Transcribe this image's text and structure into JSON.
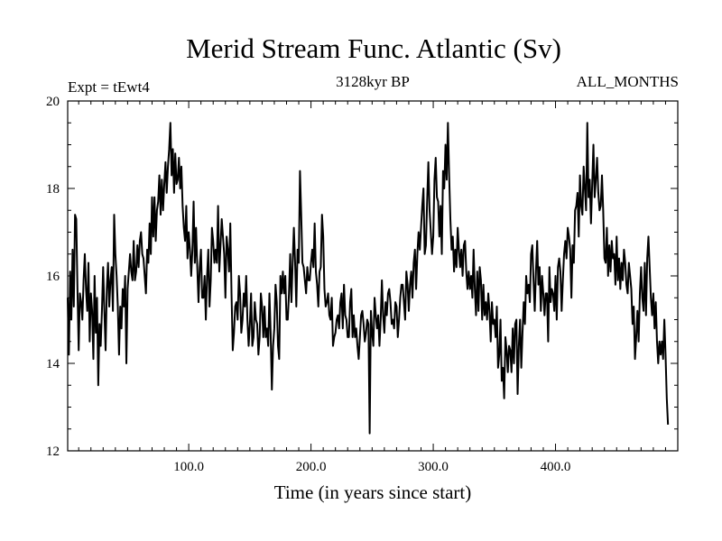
{
  "chart_data": {
    "type": "line",
    "title": "Merid Stream Func. Atlantic (Sv)",
    "subtitle_left": "Expt = tEwt4",
    "subtitle_center": "3128kyr BP",
    "subtitle_right": "ALL_MONTHS",
    "xlabel": "Time (in years since start)",
    "ylabel": "",
    "xlim": [
      1,
      500
    ],
    "ylim": [
      12,
      20
    ],
    "x_ticks": [
      {
        "value": 100,
        "label": "100.0"
      },
      {
        "value": 200,
        "label": "200.0"
      },
      {
        "value": 300,
        "label": "300.0"
      },
      {
        "value": 400,
        "label": "400.0"
      }
    ],
    "y_ticks": [
      {
        "value": 12,
        "label": "12"
      },
      {
        "value": 14,
        "label": "14"
      },
      {
        "value": 16,
        "label": "16"
      },
      {
        "value": 18,
        "label": "18"
      },
      {
        "value": 20,
        "label": "20"
      }
    ],
    "grid": false,
    "line_color": "#000000",
    "series": [
      {
        "name": "Merid Stream Func. Atlantic",
        "x_start": 1,
        "x_step": 1,
        "values": [
          15.5,
          14.2,
          16.1,
          15.0,
          16.6,
          15.3,
          17.4,
          17.3,
          15.7,
          14.3,
          15.6,
          15.4,
          15.0,
          15.9,
          16.5,
          15.7,
          15.2,
          16.3,
          14.5,
          15.6,
          15.2,
          14.1,
          16.0,
          14.7,
          15.5,
          13.5,
          14.9,
          14.4,
          15.2,
          16.2,
          15.2,
          14.3,
          15.7,
          16.3,
          15.3,
          15.9,
          16.2,
          15.2,
          17.4,
          16.5,
          16.0,
          15.3,
          14.2,
          15.3,
          14.8,
          15.7,
          15.3,
          16.0,
          14.0,
          15.7,
          16.1,
          16.5,
          16.1,
          15.9,
          16.8,
          15.9,
          16.1,
          16.7,
          16.2,
          16.8,
          17.0,
          16.5,
          16.4,
          16.0,
          15.6,
          16.6,
          16.3,
          17.2,
          16.5,
          17.8,
          16.9,
          17.8,
          16.8,
          17.5,
          17.7,
          18.3,
          17.4,
          18.2,
          17.5,
          18.1,
          18.6,
          17.9,
          18.5,
          18.9,
          19.5,
          18.3,
          18.9,
          17.9,
          18.8,
          18.1,
          18.2,
          18.7,
          18.0,
          18.5,
          17.6,
          17.1,
          16.8,
          17.6,
          16.4,
          17.0,
          16.6,
          16.0,
          16.6,
          17.7,
          16.3,
          17.1,
          16.2,
          15.4,
          16.2,
          16.6,
          15.5,
          15.5,
          16.0,
          15.0,
          16.0,
          16.6,
          15.3,
          15.9,
          17.1,
          16.8,
          16.3,
          16.6,
          16.3,
          17.6,
          16.1,
          16.7,
          17.3,
          16.9,
          16.5,
          15.5,
          16.9,
          16.6,
          16.1,
          17.2,
          15.6,
          14.3,
          14.7,
          15.3,
          15.4,
          15.0,
          16.0,
          15.6,
          14.7,
          15.0,
          15.6,
          15.3,
          16.0,
          15.0,
          14.4,
          14.9,
          15.6,
          14.4,
          14.6,
          15.4,
          15.0,
          14.9,
          14.2,
          14.6,
          15.6,
          15.3,
          14.6,
          15.3,
          14.6,
          14.8,
          14.4,
          15.6,
          14.7,
          13.4,
          14.4,
          14.8,
          15.8,
          15.4,
          14.4,
          14.1,
          16.0,
          15.6,
          16.1,
          15.6,
          16.0,
          15.0,
          15.0,
          15.6,
          16.5,
          15.4,
          16.3,
          17.1,
          16.3,
          15.3,
          16.6,
          16.3,
          18.4,
          17.4,
          16.3,
          16.2,
          15.9,
          15.6,
          16.2,
          15.9,
          15.9,
          16.3,
          16.6,
          16.2,
          17.2,
          16.1,
          15.8,
          15.3,
          16.1,
          16.2,
          17.4,
          16.9,
          15.7,
          15.3,
          15.4,
          15.6,
          15.1,
          15.0,
          15.5,
          14.4,
          14.6,
          14.7,
          15.0,
          15.1,
          14.8,
          15.4,
          15.6,
          14.8,
          15.8,
          15.1,
          15.0,
          14.6,
          14.6,
          15.4,
          15.7,
          14.6,
          15.1,
          14.6,
          14.8,
          14.4,
          14.1,
          14.6,
          15.1,
          15.2,
          14.9,
          14.5,
          14.7,
          15.0,
          14.9,
          12.4,
          15.2,
          14.7,
          14.4,
          15.5,
          15.1,
          14.8,
          15.1,
          14.4,
          15.0,
          15.9,
          15.1,
          14.7,
          15.4,
          15.1,
          15.6,
          15.7,
          15.4,
          14.9,
          15.0,
          14.8,
          15.4,
          15.3,
          14.6,
          15.0,
          15.5,
          15.8,
          15.8,
          15.4,
          15.0,
          16.1,
          15.8,
          15.2,
          15.8,
          16.1,
          15.5,
          16.3,
          16.6,
          15.7,
          16.5,
          17.0,
          16.6,
          17.1,
          17.6,
          18.0,
          16.5,
          16.7,
          17.7,
          18.6,
          17.5,
          17.0,
          16.5,
          16.9,
          18.2,
          18.7,
          17.8,
          17.7,
          16.9,
          17.6,
          16.5,
          18.4,
          18.0,
          19.0,
          18.2,
          19.5,
          18.3,
          17.3,
          16.6,
          16.9,
          16.1,
          16.6,
          16.2,
          17.1,
          16.6,
          16.2,
          16.6,
          16.0,
          16.7,
          16.8,
          16.1,
          15.7,
          16.1,
          15.7,
          16.0,
          15.5,
          16.6,
          15.7,
          15.1,
          16.1,
          15.2,
          16.2,
          15.9,
          15.0,
          15.8,
          15.1,
          15.4,
          15.0,
          15.6,
          15.2,
          14.5,
          15.4,
          14.9,
          15.0,
          14.6,
          15.3,
          13.9,
          14.2,
          15.0,
          13.6,
          13.9,
          13.2,
          14.6,
          14.3,
          13.8,
          14.4,
          14.3,
          13.8,
          14.8,
          14.0,
          14.9,
          15.0,
          13.3,
          14.4,
          15.0,
          13.9,
          14.7,
          15.4,
          14.9,
          16.0,
          15.6,
          15.8,
          15.4,
          16.5,
          16.7,
          15.9,
          15.2,
          16.1,
          16.8,
          15.8,
          16.2,
          15.2,
          16.0,
          15.6,
          15.1,
          15.6,
          15.6,
          14.5,
          16.2,
          15.4,
          15.7,
          15.6,
          15.2,
          16.0,
          15.0,
          16.2,
          16.4,
          16.1,
          15.2,
          15.9,
          16.5,
          16.8,
          16.4,
          17.1,
          16.9,
          16.6,
          15.5,
          16.7,
          16.3,
          17.5,
          17.6,
          17.9,
          16.9,
          18.3,
          17.6,
          17.4,
          18.5,
          18.0,
          17.5,
          19.5,
          17.8,
          18.2,
          17.2,
          18.1,
          19.0,
          17.8,
          18.2,
          18.7,
          17.9,
          17.5,
          17.6,
          18.3,
          17.5,
          16.4,
          16.3,
          17.1,
          16.0,
          16.7,
          16.1,
          16.8,
          16.4,
          16.5,
          15.8,
          16.9,
          15.9,
          16.4,
          15.7,
          16.3,
          15.9,
          16.6,
          16.3,
          15.8,
          15.6,
          16.3,
          16.0,
          15.7,
          14.9,
          15.3,
          14.1,
          14.6,
          15.2,
          14.5,
          15.6,
          16.2,
          15.5,
          15.2,
          16.3,
          15.1,
          16.4,
          16.9,
          16.2,
          15.5,
          15.1,
          15.6,
          14.8,
          15.4,
          14.5,
          14.0,
          14.5,
          14.2,
          14.5,
          14.1,
          15.0,
          14.2,
          13.2,
          12.6
        ]
      }
    ]
  }
}
